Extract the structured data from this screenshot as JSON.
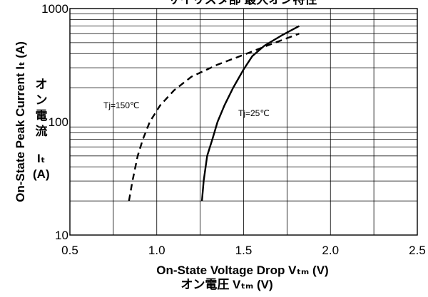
{
  "chart_data": {
    "type": "line",
    "title": "サイリスタ部 最大オン特性",
    "xlabel": "On-State Voltage Drop Vₜₘ (V)",
    "xlabel_ja": "オン電圧  Vₜₘ (V)",
    "ylabel": "On-State Peak Current Iₜ (A)",
    "ylabel_ja": "オン電流",
    "ylabel_sym": "Iₜ",
    "ylabel_unit": "(A)",
    "x_scale": "linear",
    "y_scale": "log",
    "xlim": [
      0.5,
      2.5
    ],
    "ylim": [
      10,
      1000
    ],
    "x_ticks": [
      0.5,
      1.0,
      1.5,
      2.0,
      2.5
    ],
    "x_tick_labels": [
      "0.5",
      "1.0",
      "1.5",
      "2.0",
      "2.5"
    ],
    "y_ticks": [
      10,
      100,
      1000
    ],
    "y_tick_labels": [
      "10",
      "100",
      "1000"
    ],
    "grid": true,
    "series": [
      {
        "name": "Tj=150℃",
        "style": "dashed",
        "color": "#000000",
        "points": [
          [
            0.84,
            20
          ],
          [
            0.86,
            30
          ],
          [
            0.89,
            50
          ],
          [
            0.92,
            70
          ],
          [
            0.96,
            100
          ],
          [
            1.02,
            140
          ],
          [
            1.1,
            190
          ],
          [
            1.2,
            250
          ],
          [
            1.35,
            320
          ],
          [
            1.5,
            390
          ],
          [
            1.65,
            480
          ],
          [
            1.82,
            600
          ]
        ]
      },
      {
        "name": "Tj=25℃",
        "style": "solid",
        "color": "#000000",
        "points": [
          [
            1.26,
            20
          ],
          [
            1.27,
            30
          ],
          [
            1.29,
            50
          ],
          [
            1.32,
            70
          ],
          [
            1.35,
            100
          ],
          [
            1.39,
            140
          ],
          [
            1.44,
            200
          ],
          [
            1.5,
            290
          ],
          [
            1.55,
            380
          ],
          [
            1.62,
            470
          ],
          [
            1.72,
            580
          ],
          [
            1.82,
            700
          ]
        ]
      }
    ]
  }
}
